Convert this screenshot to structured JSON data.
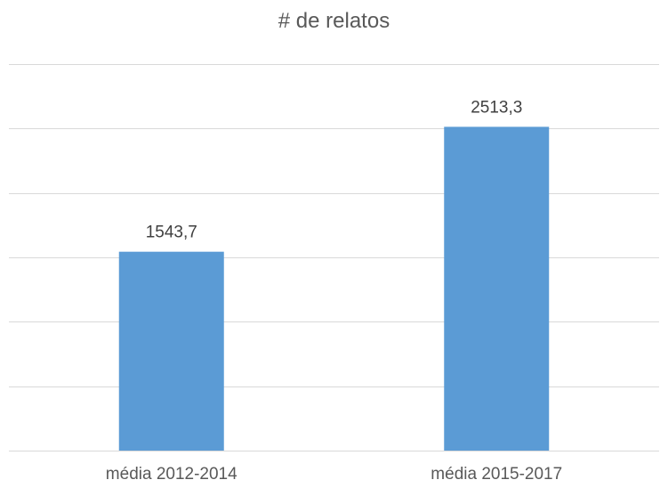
{
  "chart_data": {
    "type": "bar",
    "title": "# de relatos",
    "xlabel": "",
    "ylabel": "",
    "categories": [
      "média 2012-2014",
      "média 2015-2017"
    ],
    "values": [
      1543.7,
      2513.3
    ],
    "data_labels": [
      "1543,7",
      "2513,3"
    ],
    "ylim": [
      0,
      3000
    ],
    "y_gridline_step": 500,
    "y_tick_labels_shown": false,
    "grid": true,
    "legend": "none",
    "colors": {
      "bar": "#5b9bd5",
      "grid": "#d9d9d9",
      "text": "#595959"
    }
  }
}
